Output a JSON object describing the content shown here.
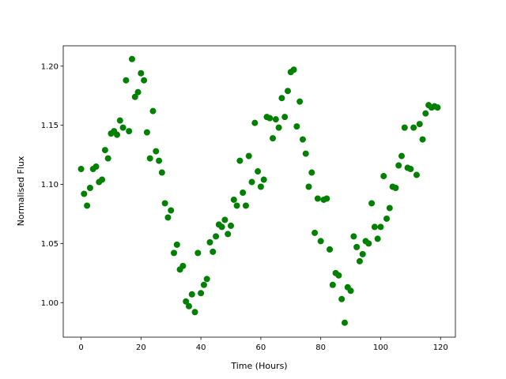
{
  "chart_data": {
    "type": "scatter",
    "color": "#008000",
    "xlabel": "Time (Hours)",
    "ylabel": "Normalised Flux",
    "x": [
      0,
      1,
      2,
      3,
      4,
      5,
      6,
      7,
      8,
      9,
      10,
      11,
      12,
      13,
      14,
      15,
      16,
      17,
      18,
      19,
      20,
      21,
      22,
      23,
      24,
      25,
      26,
      27,
      28,
      29,
      30,
      31,
      32,
      33,
      34,
      35,
      36,
      37,
      38,
      39,
      40,
      41,
      42,
      43,
      44,
      45,
      46,
      47,
      48,
      49,
      50,
      51,
      52,
      53,
      54,
      55,
      56,
      57,
      58,
      59,
      60,
      61,
      62,
      63,
      64,
      65,
      66,
      67,
      68,
      69,
      70,
      71,
      72,
      73,
      74,
      75,
      76,
      77,
      78,
      79,
      80,
      81,
      82,
      83,
      84,
      85,
      86,
      87,
      88,
      89,
      90,
      91,
      92,
      93,
      94,
      95,
      96,
      97,
      98,
      99,
      100,
      101,
      102,
      103,
      104,
      105,
      106,
      107,
      108,
      109,
      110,
      111,
      112,
      113,
      114,
      115,
      116,
      117,
      118,
      119
    ],
    "values": [
      1.113,
      1.092,
      1.082,
      1.097,
      1.113,
      1.115,
      1.102,
      1.104,
      1.129,
      1.122,
      1.143,
      1.145,
      1.142,
      1.154,
      1.148,
      1.188,
      1.145,
      1.206,
      1.174,
      1.178,
      1.194,
      1.188,
      1.144,
      1.122,
      1.162,
      1.128,
      1.12,
      1.11,
      1.084,
      1.072,
      1.078,
      1.042,
      1.049,
      1.028,
      1.031,
      1.001,
      0.997,
      1.007,
      0.992,
      1.042,
      1.008,
      1.015,
      1.02,
      1.051,
      1.043,
      1.056,
      1.066,
      1.064,
      1.07,
      1.058,
      1.065,
      1.087,
      1.082,
      1.12,
      1.093,
      1.082,
      1.124,
      1.102,
      1.152,
      1.111,
      1.098,
      1.104,
      1.157,
      1.156,
      1.139,
      1.155,
      1.148,
      1.173,
      1.157,
      1.179,
      1.195,
      1.197,
      1.149,
      1.17,
      1.138,
      1.126,
      1.098,
      1.11,
      1.059,
      1.088,
      1.052,
      1.087,
      1.088,
      1.045,
      1.015,
      1.025,
      1.023,
      1.003,
      0.983,
      1.013,
      1.01,
      1.056,
      1.047,
      1.035,
      1.041,
      1.052,
      1.05,
      1.084,
      1.064,
      1.054,
      1.064,
      1.107,
      1.071,
      1.08,
      1.098,
      1.097,
      1.116,
      1.124,
      1.148,
      1.114,
      1.113,
      1.148,
      1.108,
      1.151,
      1.138,
      1.16,
      1.167,
      1.165,
      1.166,
      1.165
    ],
    "xlim": [
      -5.95,
      124.95
    ],
    "xticks": [
      0,
      20,
      40,
      60,
      80,
      100,
      120
    ],
    "ylim": [
      0.9708,
      1.2172
    ],
    "yticks": [
      {
        "value": 1.0,
        "label": "1.00"
      },
      1.05,
      {
        "value": 1.1,
        "label": "1.10"
      },
      1.15,
      {
        "value": 1.2,
        "label": "1.20"
      }
    ],
    "grid": false
  }
}
